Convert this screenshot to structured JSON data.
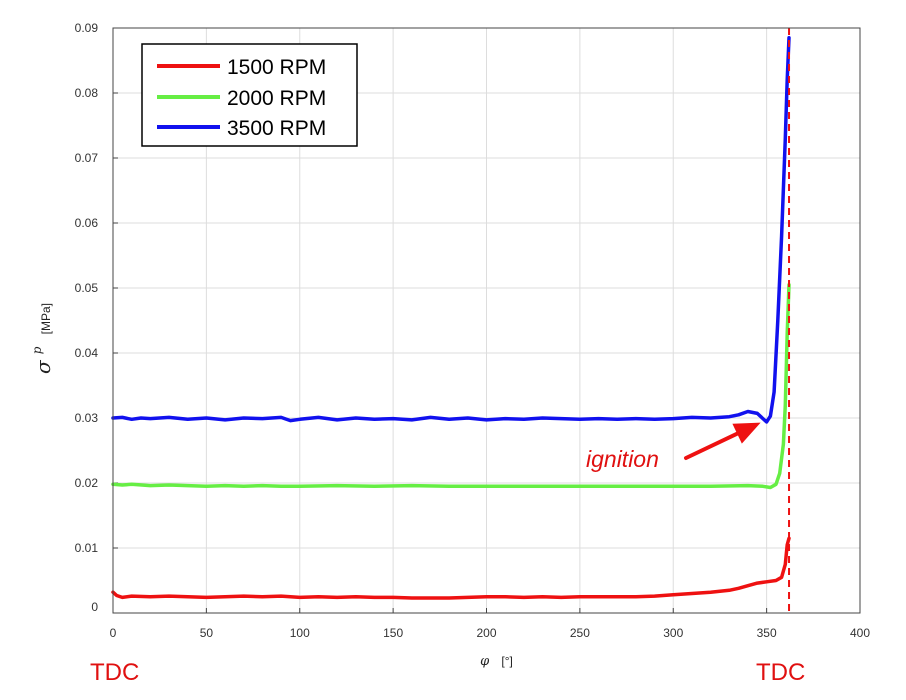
{
  "chart_data": {
    "type": "line",
    "title": "",
    "xlabel": {
      "symbol": "φ",
      "unit": "[°]"
    },
    "ylabel": {
      "symbol": "σ",
      "superscript": "p",
      "unit": "[MPa]"
    },
    "xlim": [
      0,
      400
    ],
    "ylim": [
      0,
      0.09
    ],
    "xticks": [
      0,
      50,
      100,
      150,
      200,
      250,
      300,
      350,
      400
    ],
    "yticks": [
      0,
      0.01,
      0.02,
      0.03,
      0.04,
      0.05,
      0.06,
      0.07,
      0.08,
      0.09
    ],
    "ytick_labels": [
      "0",
      "0.01",
      "0.02",
      "0.03",
      "0.04",
      "0.05",
      "0.06",
      "0.07",
      "0.08",
      "0.09"
    ],
    "grid": true,
    "legend_position": "top-left",
    "series": [
      {
        "name": "1500 RPM",
        "color": "#ee1111",
        "x": [
          0,
          2,
          5,
          10,
          20,
          30,
          40,
          50,
          60,
          70,
          80,
          90,
          100,
          110,
          120,
          130,
          140,
          150,
          160,
          170,
          180,
          190,
          200,
          210,
          220,
          230,
          240,
          250,
          260,
          270,
          280,
          290,
          300,
          310,
          320,
          330,
          335,
          340,
          345,
          350,
          355,
          358,
          360,
          361,
          362
        ],
        "y": [
          0.0032,
          0.0027,
          0.0024,
          0.0026,
          0.0025,
          0.0026,
          0.0025,
          0.0024,
          0.0025,
          0.0026,
          0.0025,
          0.0026,
          0.0024,
          0.0025,
          0.0024,
          0.0025,
          0.0024,
          0.0024,
          0.0023,
          0.0023,
          0.0023,
          0.0024,
          0.0025,
          0.0025,
          0.0024,
          0.0025,
          0.0024,
          0.0025,
          0.0025,
          0.0025,
          0.0025,
          0.0026,
          0.0028,
          0.003,
          0.0032,
          0.0035,
          0.0038,
          0.0042,
          0.0046,
          0.0048,
          0.005,
          0.0055,
          0.0075,
          0.0105,
          0.0115
        ]
      },
      {
        "name": "2000 RPM",
        "color": "#66ee44",
        "x": [
          0,
          5,
          10,
          20,
          30,
          40,
          50,
          60,
          70,
          80,
          90,
          100,
          120,
          140,
          160,
          180,
          200,
          220,
          240,
          260,
          280,
          300,
          320,
          340,
          348,
          352,
          355,
          357,
          359,
          360,
          361,
          362
        ],
        "y": [
          0.0198,
          0.0197,
          0.0198,
          0.0196,
          0.0197,
          0.0196,
          0.0195,
          0.0196,
          0.0195,
          0.0196,
          0.0195,
          0.0195,
          0.0196,
          0.0195,
          0.0196,
          0.0195,
          0.0195,
          0.0195,
          0.0195,
          0.0195,
          0.0195,
          0.0195,
          0.0195,
          0.0196,
          0.0195,
          0.0193,
          0.0198,
          0.0215,
          0.026,
          0.032,
          0.043,
          0.0505
        ]
      },
      {
        "name": "3500 RPM",
        "color": "#1111ee",
        "x": [
          0,
          5,
          10,
          15,
          20,
          30,
          40,
          50,
          60,
          70,
          80,
          90,
          95,
          100,
          110,
          120,
          130,
          140,
          150,
          160,
          170,
          180,
          190,
          200,
          210,
          220,
          230,
          240,
          250,
          260,
          270,
          280,
          290,
          300,
          310,
          320,
          330,
          335,
          340,
          345,
          348,
          350,
          352,
          354,
          356,
          358,
          360,
          361,
          362
        ],
        "y": [
          0.03,
          0.0301,
          0.0298,
          0.03,
          0.0299,
          0.0301,
          0.0298,
          0.03,
          0.0297,
          0.03,
          0.0299,
          0.0301,
          0.0296,
          0.0298,
          0.0301,
          0.0297,
          0.03,
          0.0298,
          0.0299,
          0.0297,
          0.0301,
          0.0298,
          0.03,
          0.0297,
          0.0299,
          0.0298,
          0.03,
          0.0299,
          0.0298,
          0.0299,
          0.0298,
          0.0299,
          0.0298,
          0.0299,
          0.0301,
          0.03,
          0.0302,
          0.0305,
          0.031,
          0.0307,
          0.0299,
          0.0294,
          0.0303,
          0.034,
          0.045,
          0.058,
          0.073,
          0.082,
          0.0885
        ]
      }
    ],
    "reference_line": {
      "x": 362,
      "color": "#ee1111",
      "style": "dashed"
    },
    "annotations": [
      {
        "text": "ignition",
        "color": "#ee1111",
        "arrow_to": {
          "x": 350,
          "y": 0.0296
        }
      },
      {
        "text": "TDC",
        "color": "#ee1111",
        "near_x": 0
      },
      {
        "text": "TDC",
        "color": "#ee1111",
        "near_x": 362
      }
    ]
  }
}
